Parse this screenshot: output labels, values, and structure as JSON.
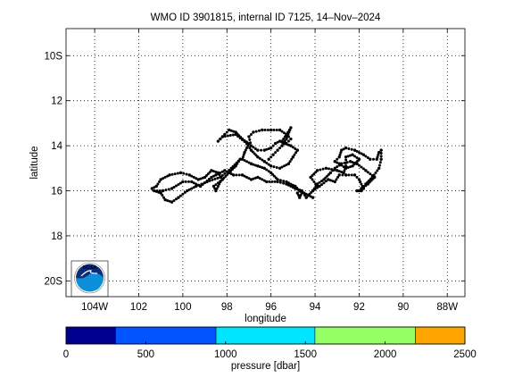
{
  "chart_data": {
    "type": "scatter",
    "title": "WMO ID 3901815, internal ID 7125, 14–Nov–2024",
    "xlabel": "longitude",
    "ylabel": "latitude",
    "xlim": [
      -105.3,
      -87.2
    ],
    "ylim": [
      20.7,
      8.8
    ],
    "y_axis_direction": "reversed",
    "grid": true,
    "x_ticks": [
      -104,
      -102,
      -100,
      -98,
      -96,
      -94,
      -92,
      -90,
      -88
    ],
    "x_tick_labels": [
      "104W",
      "102",
      "100",
      "98",
      "96",
      "94",
      "92",
      "90",
      "88W"
    ],
    "y_ticks": [
      10,
      12,
      14,
      16,
      18,
      20
    ],
    "y_tick_labels": [
      "10S",
      "12",
      "14",
      "16",
      "18",
      "20S"
    ],
    "marker_color": "#000000",
    "series": [
      {
        "points": [
          [
            -101.4,
            15.9
          ],
          [
            -101.2,
            15.8
          ],
          [
            -101.0,
            15.5
          ],
          [
            -100.6,
            15.3
          ],
          [
            -100.1,
            15.2
          ],
          [
            -99.7,
            15.3
          ],
          [
            -99.3,
            15.5
          ],
          [
            -99.0,
            15.4
          ],
          [
            -98.7,
            15.1
          ],
          [
            -98.4,
            15.2
          ],
          [
            -98.2,
            15.5
          ],
          [
            -98.6,
            15.8
          ],
          [
            -98.5,
            16.0
          ],
          [
            -98.3,
            15.6
          ],
          [
            -97.9,
            15.2
          ],
          [
            -97.6,
            14.9
          ],
          [
            -97.4,
            14.6
          ],
          [
            -97.8,
            15.0
          ],
          [
            -98.3,
            15.4
          ],
          [
            -98.9,
            15.6
          ],
          [
            -99.4,
            15.8
          ],
          [
            -99.8,
            16.0
          ],
          [
            -100.2,
            16.3
          ],
          [
            -100.5,
            16.5
          ],
          [
            -100.8,
            16.4
          ],
          [
            -101.0,
            16.1
          ],
          [
            -101.3,
            16.0
          ],
          [
            -100.9,
            16.0
          ],
          [
            -100.5,
            15.9
          ],
          [
            -100.0,
            15.6
          ],
          [
            -99.6,
            15.6
          ],
          [
            -99.2,
            15.8
          ],
          [
            -98.7,
            15.4
          ],
          [
            -98.5,
            15.3
          ],
          [
            -98.1,
            15.1
          ],
          [
            -97.7,
            15.3
          ],
          [
            -97.3,
            15.3
          ],
          [
            -96.9,
            15.5
          ],
          [
            -96.6,
            15.4
          ],
          [
            -96.2,
            15.6
          ],
          [
            -95.7,
            15.6
          ],
          [
            -95.3,
            15.7
          ],
          [
            -94.9,
            15.9
          ],
          [
            -94.6,
            16.0
          ],
          [
            -94.4,
            16.3
          ],
          [
            -94.1,
            16.0
          ],
          [
            -93.9,
            15.8
          ],
          [
            -94.2,
            15.4
          ],
          [
            -93.9,
            15.1
          ],
          [
            -93.5,
            15.0
          ],
          [
            -93.0,
            15.1
          ],
          [
            -92.7,
            15.2
          ],
          [
            -92.6,
            14.9
          ],
          [
            -92.6,
            14.5
          ],
          [
            -92.3,
            14.4
          ],
          [
            -92.0,
            14.6
          ],
          [
            -92.3,
            14.9
          ],
          [
            -92.6,
            15.0
          ],
          [
            -92.9,
            14.8
          ],
          [
            -93.1,
            14.7
          ],
          [
            -92.9,
            14.5
          ],
          [
            -92.8,
            14.2
          ],
          [
            -92.6,
            14.1
          ],
          [
            -92.2,
            14.2
          ],
          [
            -91.8,
            14.4
          ],
          [
            -91.5,
            14.6
          ],
          [
            -91.2,
            14.6
          ],
          [
            -91.1,
            14.3
          ],
          [
            -91.0,
            14.2
          ],
          [
            -91.0,
            14.6
          ],
          [
            -91.1,
            15.0
          ],
          [
            -91.4,
            15.4
          ],
          [
            -91.7,
            15.7
          ],
          [
            -91.9,
            15.9
          ],
          [
            -92.0,
            16.0
          ],
          [
            -91.6,
            15.7
          ],
          [
            -91.3,
            15.4
          ],
          [
            -91.7,
            15.1
          ],
          [
            -92.1,
            14.8
          ],
          [
            -92.4,
            14.7
          ],
          [
            -92.8,
            14.8
          ],
          [
            -93.1,
            15.0
          ],
          [
            -93.3,
            15.2
          ],
          [
            -93.6,
            15.5
          ],
          [
            -93.9,
            15.7
          ],
          [
            -94.1,
            16.0
          ],
          [
            -93.8,
            15.8
          ],
          [
            -93.4,
            15.5
          ],
          [
            -93.1,
            15.6
          ],
          [
            -92.9,
            15.3
          ],
          [
            -92.6,
            15.3
          ],
          [
            -92.2,
            15.3
          ],
          [
            -92.0,
            15.5
          ],
          [
            -91.8,
            15.9
          ],
          [
            -91.9,
            16.0
          ],
          [
            -92.1,
            16.0
          ],
          [
            -94.1,
            16.3
          ],
          [
            -94.3,
            16.2
          ],
          [
            -94.5,
            16.1
          ],
          [
            -94.7,
            16.0
          ],
          [
            -94.8,
            16.1
          ],
          [
            -94.7,
            16.3
          ],
          [
            -94.6,
            16.1
          ],
          [
            -94.9,
            15.8
          ],
          [
            -95.3,
            15.6
          ],
          [
            -95.7,
            15.5
          ],
          [
            -96.0,
            15.2
          ],
          [
            -96.3,
            15.0
          ],
          [
            -96.6,
            14.9
          ],
          [
            -96.9,
            14.8
          ],
          [
            -97.3,
            14.6
          ],
          [
            -97.2,
            14.3
          ],
          [
            -97.0,
            13.9
          ],
          [
            -97.3,
            13.7
          ],
          [
            -97.6,
            13.4
          ],
          [
            -97.9,
            13.3
          ],
          [
            -98.1,
            13.5
          ],
          [
            -98.3,
            13.7
          ],
          [
            -98.4,
            13.8
          ],
          [
            -98.2,
            13.6
          ],
          [
            -97.6,
            13.5
          ],
          [
            -97.1,
            13.9
          ],
          [
            -96.9,
            14.2
          ],
          [
            -96.6,
            14.5
          ],
          [
            -96.3,
            14.7
          ],
          [
            -96.0,
            14.9
          ],
          [
            -95.6,
            15.0
          ],
          [
            -95.2,
            14.8
          ],
          [
            -95.0,
            14.5
          ],
          [
            -94.8,
            14.2
          ],
          [
            -95.1,
            14.0
          ],
          [
            -95.4,
            13.9
          ],
          [
            -95.6,
            13.8
          ],
          [
            -95.8,
            13.9
          ],
          [
            -96.0,
            14.1
          ],
          [
            -96.3,
            14.2
          ],
          [
            -96.6,
            14.2
          ],
          [
            -96.9,
            14.0
          ],
          [
            -97.0,
            13.6
          ],
          [
            -96.8,
            13.4
          ],
          [
            -96.4,
            13.3
          ],
          [
            -96.0,
            13.3
          ],
          [
            -95.6,
            13.3
          ],
          [
            -95.3,
            13.5
          ],
          [
            -95.1,
            13.7
          ],
          [
            -95.3,
            13.9
          ],
          [
            -95.5,
            13.8
          ],
          [
            -95.3,
            13.5
          ],
          [
            -95.1,
            13.2
          ],
          [
            -95.3,
            13.7
          ],
          [
            -95.5,
            14.0
          ],
          [
            -95.7,
            14.2
          ],
          [
            -95.9,
            14.4
          ],
          [
            -96.1,
            14.6
          ]
        ]
      }
    ],
    "colorbar": {
      "label": "pressure [dbar]",
      "ticks": [
        0,
        500,
        1000,
        1500,
        2000,
        2500
      ],
      "range": [
        0,
        2500
      ],
      "bands": [
        {
          "from": 0,
          "to": 310,
          "color": "#00008f"
        },
        {
          "from": 310,
          "to": 940,
          "color": "#0055ff"
        },
        {
          "from": 940,
          "to": 1560,
          "color": "#00e5ff"
        },
        {
          "from": 1560,
          "to": 2190,
          "color": "#96ff64"
        },
        {
          "from": 2190,
          "to": 2500,
          "color": "#ffa500"
        }
      ]
    },
    "logo": {
      "text": "NOAA",
      "colors": {
        "top": "#0c2d7a",
        "bottom": "#0a8fd8"
      }
    }
  }
}
